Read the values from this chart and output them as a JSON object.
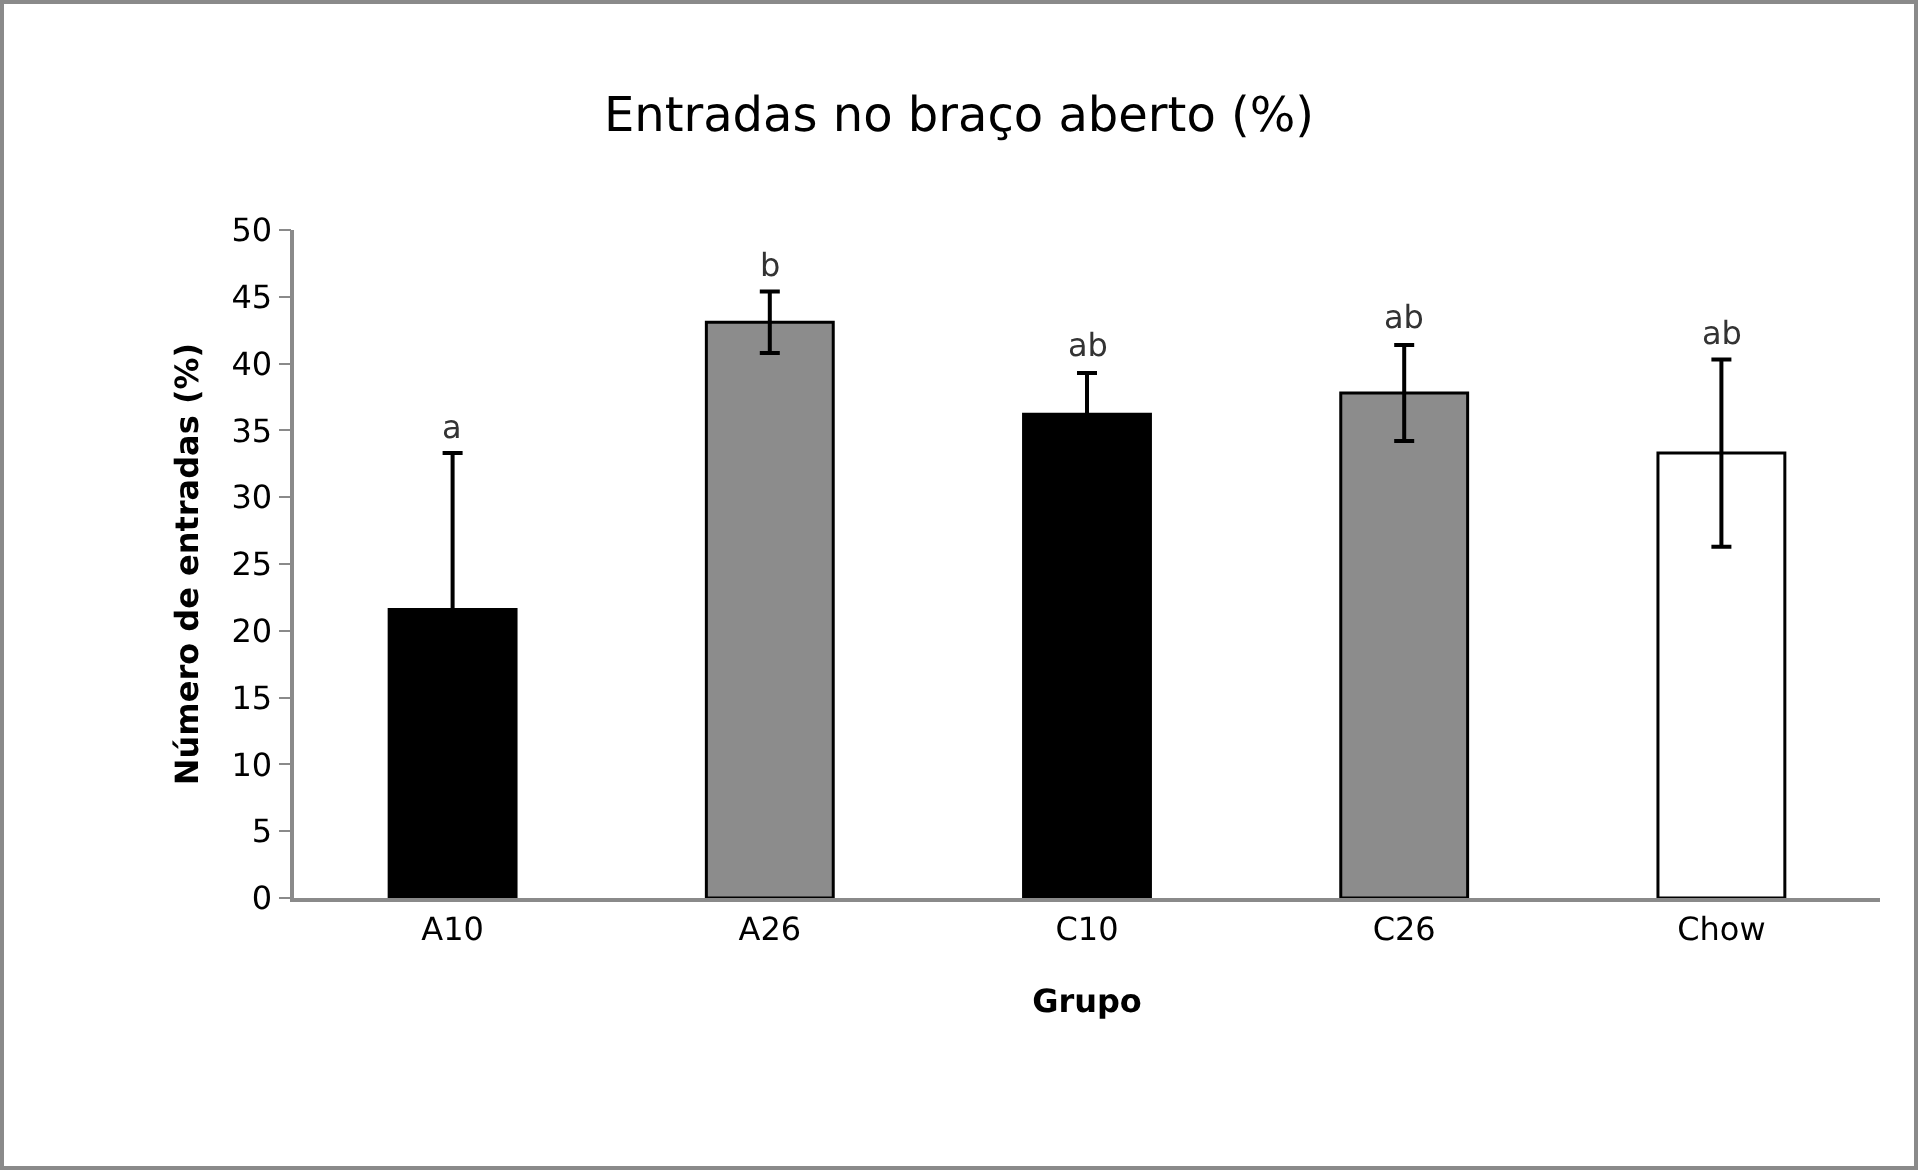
{
  "chart_data": {
    "type": "bar",
    "title": "Entradas no braço aberto (%)",
    "xlabel": "Grupo",
    "ylabel": "Número de entradas (%)",
    "categories": [
      "A10",
      "A26",
      "C10",
      "C26",
      "Chow"
    ],
    "values": [
      21.6,
      43.1,
      36.2,
      37.8,
      33.3
    ],
    "errors": [
      11.7,
      2.3,
      3.1,
      3.6,
      7.0
    ],
    "colors": [
      "#000000",
      "#8c8c8c",
      "#000000",
      "#8c8c8c",
      "#ffffff"
    ],
    "ylim": [
      0,
      50
    ],
    "yticks": [
      0,
      5,
      10,
      15,
      20,
      25,
      30,
      35,
      40,
      45,
      50
    ],
    "grid": false,
    "legend": false,
    "annotations": [
      "a",
      "b",
      "ab",
      "ab",
      "ab"
    ]
  }
}
